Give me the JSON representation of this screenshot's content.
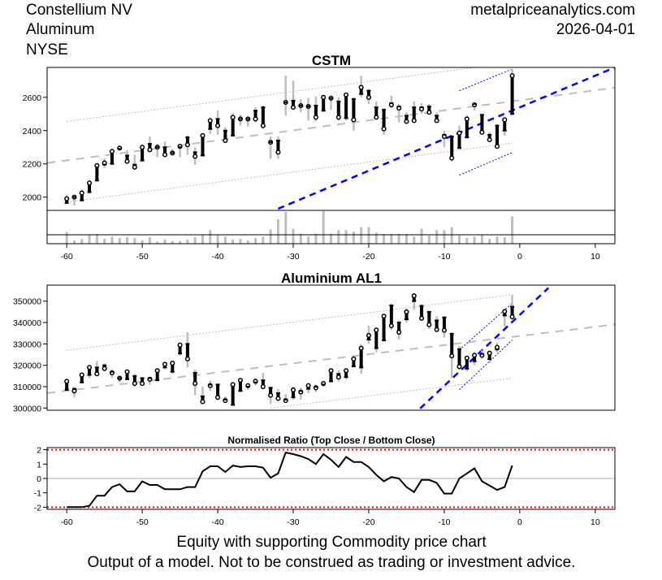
{
  "header": {
    "company": "Constellium NV",
    "sector": "Aluminum",
    "exchange": "NYSE",
    "site": "metalpriceanalytics.com",
    "date": "2026-04-01"
  },
  "footer": {
    "line1": "Equity with supporting Commodity price chart",
    "line2": "Output of a model. Not to be construed as trading or investment advice."
  },
  "colors": {
    "candle": "#000000",
    "wick": "#bebebe",
    "trend": "#0000ff",
    "regression": "#bebebe",
    "limit": "#ff0000"
  },
  "chart_data": [
    {
      "type": "candlestick",
      "title": "CSTM",
      "x_start": -60,
      "xlim": [
        -62.6,
        12.6
      ],
      "ylim": [
        1920,
        2780
      ],
      "yticks": [
        "2000",
        "2200",
        "2400",
        "2600"
      ],
      "xticks": [
        "-60",
        "-50",
        "-40",
        "-30",
        "-20",
        "-10",
        "0",
        "10"
      ],
      "ohlc": [
        [
          1965,
          2015,
          1960,
          1990
        ],
        [
          2000,
          2010,
          1950,
          2000
        ],
        [
          1980,
          2045,
          1975,
          2025
        ],
        [
          2030,
          2090,
          2020,
          2085
        ],
        [
          2100,
          2195,
          2090,
          2190
        ],
        [
          2195,
          2230,
          2175,
          2205
        ],
        [
          2200,
          2285,
          2195,
          2275
        ],
        [
          2290,
          2305,
          2280,
          2295
        ],
        [
          2250,
          2280,
          2205,
          2215
        ],
        [
          2195,
          2255,
          2170,
          2180
        ],
        [
          2220,
          2305,
          2210,
          2300
        ],
        [
          2320,
          2365,
          2275,
          2285
        ],
        [
          2300,
          2320,
          2240,
          2300
        ],
        [
          2300,
          2335,
          2245,
          2255
        ],
        [
          2265,
          2290,
          2255,
          2265
        ],
        [
          2300,
          2320,
          2240,
          2305
        ],
        [
          2360,
          2370,
          2255,
          2315
        ],
        [
          2270,
          2300,
          2195,
          2245
        ],
        [
          2250,
          2375,
          2245,
          2370
        ],
        [
          2410,
          2480,
          2380,
          2460
        ],
        [
          2470,
          2520,
          2375,
          2430
        ],
        [
          2400,
          2420,
          2330,
          2340
        ],
        [
          2370,
          2505,
          2365,
          2480
        ],
        [
          2470,
          2495,
          2430,
          2470
        ],
        [
          2470,
          2480,
          2425,
          2470
        ],
        [
          2520,
          2540,
          2450,
          2470
        ],
        [
          2540,
          2550,
          2410,
          2430
        ],
        [
          2330,
          2365,
          2230,
          2330
        ],
        [
          2340,
          2365,
          2230,
          2270
        ],
        [
          2570,
          2730,
          2490,
          2570
        ],
        [
          2580,
          2700,
          2530,
          2540
        ],
        [
          2550,
          2590,
          2510,
          2550
        ],
        [
          2545,
          2595,
          2460,
          2545
        ],
        [
          2550,
          2605,
          2455,
          2480
        ],
        [
          2520,
          2610,
          2510,
          2600
        ],
        [
          2595,
          2600,
          2525,
          2595
        ],
        [
          2575,
          2600,
          2460,
          2480
        ],
        [
          2475,
          2620,
          2460,
          2615
        ],
        [
          2590,
          2600,
          2400,
          2465
        ],
        [
          2620,
          2730,
          2600,
          2660
        ],
        [
          2640,
          2650,
          2560,
          2600
        ],
        [
          2540,
          2575,
          2470,
          2480
        ],
        [
          2525,
          2535,
          2375,
          2410
        ],
        [
          2565,
          2610,
          2535,
          2555
        ],
        [
          2545,
          2560,
          2450,
          2535
        ],
        [
          2490,
          2510,
          2440,
          2455
        ],
        [
          2540,
          2575,
          2450,
          2460
        ],
        [
          2540,
          2565,
          2500,
          2530
        ],
        [
          2545,
          2560,
          2500,
          2510
        ],
        [
          2490,
          2510,
          2450,
          2460
        ],
        [
          2375,
          2400,
          2300,
          2365
        ],
        [
          2365,
          2370,
          2215,
          2235
        ],
        [
          2295,
          2430,
          2290,
          2385
        ],
        [
          2360,
          2490,
          2350,
          2470
        ],
        [
          2560,
          2570,
          2520,
          2555
        ],
        [
          2495,
          2500,
          2380,
          2390
        ],
        [
          2375,
          2390,
          2340,
          2345
        ],
        [
          2430,
          2440,
          2300,
          2305
        ],
        [
          2400,
          2475,
          2370,
          2465
        ],
        [
          2500,
          2770,
          2495,
          2730
        ]
      ],
      "volume_relative": [
        0.36,
        0.1,
        0.15,
        0.26,
        0.3,
        0.15,
        0.22,
        0.18,
        0.2,
        0.18,
        0.11,
        0.2,
        0.06,
        0.13,
        0.08,
        0.08,
        0.13,
        0.2,
        0.27,
        0.42,
        0.26,
        0.22,
        0.13,
        0.15,
        0.1,
        0.18,
        0.22,
        0.44,
        0.75,
        0.98,
        0.46,
        0.31,
        0.22,
        0.31,
        1.0,
        0.31,
        0.42,
        0.42,
        0.37,
        0.51,
        0.51,
        0.34,
        0.3,
        0.3,
        0.3,
        0.3,
        0.22,
        0.46,
        0.25,
        0.42,
        0.42,
        0.51,
        0.25,
        0.18,
        0.22,
        0.27,
        0.15,
        0.22,
        0.2,
        0.84
      ],
      "regression": {
        "x": [
          -62.6,
          12.6
        ],
        "y": [
          2205,
          2658
        ],
        "band_offsets": [
          234,
          -251
        ],
        "band_x": [
          -60,
          -1
        ]
      },
      "trend_line": {
        "x": [
          -32,
          12.6
        ],
        "y": [
          1930,
          2780
        ]
      },
      "trend_channel": {
        "x": [
          -8,
          -1
        ],
        "upper": [
          2640,
          2770
        ],
        "lower": [
          2132,
          2268
        ]
      }
    },
    {
      "type": "candlestick",
      "title": "Aluminium AL1",
      "x_start": -60,
      "xlim": [
        -62.6,
        12.6
      ],
      "ylim": [
        299000,
        357500
      ],
      "yticks": [
        "300000",
        "310000",
        "320000",
        "330000",
        "340000",
        "350000"
      ],
      "ohlc": [
        [
          308500,
          313000,
          308000,
          312500
        ],
        [
          309000,
          310000,
          305000,
          308000
        ],
        [
          312000,
          316000,
          312000,
          315500
        ],
        [
          315500,
          319500,
          314000,
          319000
        ],
        [
          319000,
          322000,
          315500,
          316000
        ],
        [
          320000,
          321000,
          317500,
          318500
        ],
        [
          317000,
          318000,
          314000,
          316500
        ],
        [
          314000,
          315000,
          312000,
          314000
        ],
        [
          313500,
          318000,
          313000,
          317000
        ],
        [
          315000,
          316000,
          310000,
          311500
        ],
        [
          314000,
          314500,
          311000,
          311500
        ],
        [
          314000,
          314500,
          311000,
          313500
        ],
        [
          313000,
          318000,
          312500,
          317500
        ],
        [
          319000,
          321000,
          318000,
          320500
        ],
        [
          317000,
          321500,
          316000,
          321000
        ],
        [
          325500,
          330000,
          324500,
          329500
        ],
        [
          330000,
          335500,
          319000,
          323000
        ],
        [
          316500,
          318000,
          306000,
          311500
        ],
        [
          305500,
          310000,
          303000,
          303000
        ],
        [
          311000,
          313000,
          308000,
          310500
        ],
        [
          311000,
          311500,
          304500,
          305000
        ],
        [
          304000,
          305500,
          302500,
          303500
        ],
        [
          301500,
          311500,
          301000,
          311000
        ],
        [
          308000,
          313500,
          307500,
          313000
        ],
        [
          310000,
          311500,
          308500,
          310500
        ],
        [
          312000,
          314000,
          310500,
          312500
        ],
        [
          313000,
          316500,
          309000,
          310000
        ],
        [
          309500,
          310000,
          302000,
          306000
        ],
        [
          307000,
          309000,
          304000,
          304500
        ],
        [
          304000,
          306500,
          303000,
          303500
        ],
        [
          305000,
          310000,
          304000,
          308500
        ],
        [
          308000,
          309500,
          304000,
          307500
        ],
        [
          309000,
          311500,
          307000,
          310500
        ],
        [
          310000,
          311000,
          307500,
          309500
        ],
        [
          311000,
          312000,
          310000,
          311500
        ],
        [
          312500,
          318000,
          312000,
          317500
        ],
        [
          316000,
          317500,
          312500,
          314500
        ],
        [
          314500,
          318000,
          313500,
          317500
        ],
        [
          319500,
          324000,
          319000,
          323000
        ],
        [
          319000,
          330000,
          316000,
          328000
        ],
        [
          332000,
          338500,
          330000,
          334000
        ],
        [
          328000,
          337000,
          326000,
          336500
        ],
        [
          331700,
          344000,
          331000,
          343000
        ],
        [
          348000,
          349000,
          336500,
          338500
        ],
        [
          340000,
          341000,
          332000,
          335500
        ],
        [
          341500,
          346500,
          340000,
          345000
        ],
        [
          350000,
          353500,
          346000,
          352500
        ],
        [
          347800,
          348500,
          341000,
          342000
        ],
        [
          345000,
          345500,
          337000,
          339000
        ],
        [
          341000,
          343000,
          336000,
          336700
        ],
        [
          342400,
          343000,
          333000,
          336400
        ],
        [
          334700,
          335500,
          314000,
          324400
        ],
        [
          327600,
          329000,
          318000,
          319400
        ],
        [
          318400,
          324000,
          317000,
          323400
        ],
        [
          321900,
          326000,
          320000,
          324700
        ],
        [
          325300,
          327000,
          323000,
          324700
        ],
        [
          322900,
          326000,
          321000,
          325700
        ],
        [
          327400,
          330500,
          326000,
          328400
        ],
        [
          343300,
          346000,
          338000,
          345200
        ],
        [
          347400,
          353000,
          341000,
          342700
        ]
      ],
      "regression": {
        "x": [
          -62.6,
          12.6
        ],
        "y": [
          307000,
          339100
        ]
      },
      "upper_band": {
        "x": [
          -60,
          -1
        ],
        "y": [
          327000,
          353000
        ]
      },
      "lower_band": {
        "x": [
          -33,
          -1
        ],
        "y": [
          300000,
          314000
        ]
      },
      "trend_line": {
        "x": [
          -13.2,
          3.8
        ],
        "y": [
          299800,
          356200
        ]
      },
      "trend_channel": {
        "x": [
          -8,
          -1
        ],
        "upper": [
          327200,
          349000
        ],
        "lower": [
          308600,
          331800
        ]
      }
    },
    {
      "type": "line",
      "title": "Normalised Ratio (Top Close / Bottom Close)",
      "x_start": -60,
      "xlim": [
        -62.6,
        12.6
      ],
      "ylim": [
        -2.15,
        2.15
      ],
      "yticks": [
        "-2",
        "-1",
        "0",
        "1",
        "2"
      ],
      "xticks": [
        "-60",
        "-50",
        "-40",
        "-30",
        "-20",
        "-10",
        "0",
        "10"
      ],
      "limits": [
        2,
        -2
      ],
      "values": [
        -2,
        -2,
        -2,
        -1.9,
        -1.2,
        -1.2,
        -0.6,
        -0.4,
        -0.9,
        -0.9,
        -0.2,
        -0.45,
        -0.45,
        -0.75,
        -0.75,
        -0.75,
        -0.6,
        -0.6,
        0.5,
        0.85,
        0.85,
        0.45,
        0.9,
        0.8,
        0.85,
        0.85,
        0.75,
        0.05,
        0.35,
        1.8,
        1.7,
        1.55,
        1.35,
        1.0,
        1.7,
        1.3,
        0.8,
        1.5,
        1.15,
        1.15,
        0.8,
        0.25,
        -0.2,
        0.1,
        0,
        -0.6,
        -0.95,
        -0.1,
        -0.1,
        -0.3,
        -1.05,
        -1.05,
        0,
        0.35,
        0.7,
        -0.2,
        -0.5,
        -0.8,
        -0.6,
        0.9
      ]
    }
  ]
}
